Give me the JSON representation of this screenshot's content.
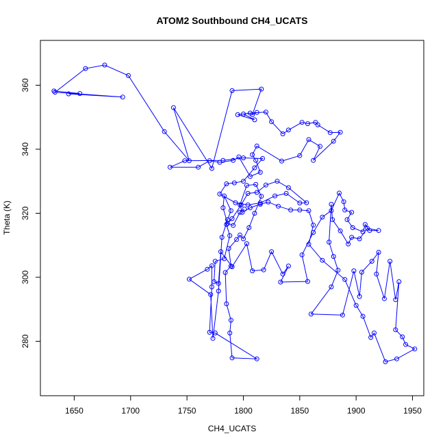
{
  "chart_data": {
    "type": "line",
    "title": "ATOM2 Southbound CH4_UCATS",
    "xlabel": "CH4_UCATS",
    "ylabel": "Theta (K)",
    "xlim": [
      1620,
      1960
    ],
    "ylim": [
      263,
      374
    ],
    "xticks": [
      1650,
      1700,
      1750,
      1800,
      1850,
      1900,
      1950
    ],
    "yticks": [
      280,
      300,
      320,
      340,
      360
    ],
    "grid": false,
    "legend": "none",
    "series": [
      {
        "color": "#0000ff",
        "markers": "open-circle",
        "points": [
          [
            1632,
            358.2
          ],
          [
            1655,
            357.4
          ],
          [
            1645,
            357.3
          ],
          [
            1693,
            356.3
          ],
          [
            1633,
            357.8
          ],
          [
            1660,
            365.2
          ],
          [
            1677,
            366.3
          ],
          [
            1698,
            363.0
          ],
          [
            1730,
            345.5
          ],
          [
            1752,
            336.4
          ],
          [
            1738,
            353.0
          ],
          [
            1772,
            334.0
          ],
          [
            1790,
            358.3
          ],
          [
            1816,
            358.8
          ],
          [
            1808,
            350.8
          ],
          [
            1812,
            351.5
          ],
          [
            1800,
            351.0
          ],
          [
            1810,
            349.2
          ],
          [
            1795,
            350.8
          ],
          [
            1806,
            351.3
          ],
          [
            1820,
            351.6
          ],
          [
            1825,
            348.6
          ],
          [
            1835,
            344.8
          ],
          [
            1840,
            346.0
          ],
          [
            1852,
            348.4
          ],
          [
            1857,
            348.0
          ],
          [
            1864,
            348.4
          ],
          [
            1866,
            347.6
          ],
          [
            1877,
            345.2
          ],
          [
            1886,
            345.3
          ],
          [
            1880,
            342.5
          ],
          [
            1862,
            336.5
          ],
          [
            1868,
            340.9
          ],
          [
            1858,
            343.0
          ],
          [
            1850,
            338.0
          ],
          [
            1834,
            336.3
          ],
          [
            1812,
            341.0
          ],
          [
            1808,
            338.3
          ],
          [
            1811,
            336.5
          ],
          [
            1815,
            332.8
          ],
          [
            1806,
            331.5
          ],
          [
            1796,
            337.6
          ],
          [
            1791,
            336.5
          ],
          [
            1779,
            335.9
          ],
          [
            1770,
            336.4
          ],
          [
            1760,
            334.4
          ],
          [
            1735,
            334.4
          ],
          [
            1748,
            336.4
          ],
          [
            1782,
            336.5
          ],
          [
            1800,
            337.3
          ],
          [
            1817,
            337.1
          ],
          [
            1810,
            334.2
          ],
          [
            1800,
            330.0
          ],
          [
            1792,
            329.5
          ],
          [
            1785,
            329.2
          ],
          [
            1779,
            326.0
          ],
          [
            1793,
            323.3
          ],
          [
            1804,
            322.6
          ],
          [
            1815,
            323.2
          ],
          [
            1828,
            325.4
          ],
          [
            1838,
            326.2
          ],
          [
            1850,
            323.2
          ],
          [
            1856,
            323.3
          ],
          [
            1840,
            328.0
          ],
          [
            1830,
            330.0
          ],
          [
            1820,
            328.8
          ],
          [
            1812,
            326.5
          ],
          [
            1804,
            326.2
          ],
          [
            1798,
            322.6
          ],
          [
            1790,
            318.3
          ],
          [
            1785,
            316.5
          ],
          [
            1788,
            313.0
          ],
          [
            1783,
            305.8
          ],
          [
            1775,
            305.0
          ],
          [
            1774,
            298.6
          ],
          [
            1778,
            298.1
          ],
          [
            1780,
            308.0
          ],
          [
            1790,
            303.3
          ],
          [
            1803,
            310.5
          ],
          [
            1808,
            302.0
          ],
          [
            1818,
            302.3
          ],
          [
            1825,
            308.0
          ],
          [
            1835,
            301.0
          ],
          [
            1840,
            303.5
          ],
          [
            1833,
            298.5
          ],
          [
            1857,
            298.7
          ],
          [
            1852,
            307.0
          ],
          [
            1862,
            314.0
          ],
          [
            1870,
            318.8
          ],
          [
            1878,
            320.8
          ],
          [
            1885,
            326.3
          ],
          [
            1889,
            323.6
          ],
          [
            1890,
            321.0
          ],
          [
            1896,
            320.3
          ],
          [
            1892,
            318.0
          ],
          [
            1897,
            315.5
          ],
          [
            1906,
            314.2
          ],
          [
            1908,
            316.5
          ],
          [
            1912,
            314.6
          ],
          [
            1920,
            314.6
          ],
          [
            1910,
            315.3
          ],
          [
            1903,
            312.0
          ],
          [
            1896,
            312.5
          ],
          [
            1893,
            310.4
          ],
          [
            1886,
            314.5
          ],
          [
            1879,
            318.0
          ],
          [
            1878,
            322.8
          ],
          [
            1876,
            311.0
          ],
          [
            1880,
            306.5
          ],
          [
            1884,
            302.2
          ],
          [
            1878,
            297.0
          ],
          [
            1860,
            288.5
          ],
          [
            1888,
            288.2
          ],
          [
            1898,
            302.0
          ],
          [
            1903,
            294.0
          ],
          [
            1905,
            301.6
          ],
          [
            1914,
            305.0
          ],
          [
            1920,
            307.8
          ],
          [
            1918,
            301.0
          ],
          [
            1925,
            293.3
          ],
          [
            1930,
            305.0
          ],
          [
            1935,
            293.0
          ],
          [
            1938,
            298.6
          ],
          [
            1935,
            283.6
          ],
          [
            1941,
            281.4
          ],
          [
            1944,
            279.0
          ],
          [
            1952,
            277.6
          ],
          [
            1936,
            274.5
          ],
          [
            1926,
            273.6
          ],
          [
            1916,
            282.6
          ],
          [
            1913,
            281.2
          ],
          [
            1906,
            287.8
          ],
          [
            1900,
            291.2
          ],
          [
            1890,
            299.3
          ],
          [
            1870,
            305.3
          ],
          [
            1858,
            310.3
          ],
          [
            1862,
            316.3
          ],
          [
            1858,
            320.8
          ],
          [
            1850,
            321.0
          ],
          [
            1842,
            321.0
          ],
          [
            1831,
            322.2
          ],
          [
            1822,
            323.5
          ],
          [
            1815,
            322.8
          ],
          [
            1806,
            321.7
          ],
          [
            1799,
            320.3
          ],
          [
            1797,
            322.6
          ],
          [
            1803,
            328.7
          ],
          [
            1811,
            329.0
          ],
          [
            1816,
            325.3
          ],
          [
            1810,
            320.0
          ],
          [
            1805,
            315.5
          ],
          [
            1800,
            312.0
          ],
          [
            1797,
            313.2
          ],
          [
            1794,
            311.8
          ],
          [
            1787,
            309.0
          ],
          [
            1789,
            303.5
          ],
          [
            1784,
            301.5
          ],
          [
            1785,
            291.7
          ],
          [
            1789,
            286.6
          ],
          [
            1788,
            282.6
          ],
          [
            1790,
            274.8
          ],
          [
            1812,
            274.5
          ],
          [
            1775,
            282.6
          ],
          [
            1770,
            282.8
          ],
          [
            1772,
            297.0
          ],
          [
            1772,
            303.6
          ],
          [
            1768,
            302.5
          ],
          [
            1752,
            299.4
          ],
          [
            1771,
            294.6
          ],
          [
            1773,
            280.9
          ],
          [
            1778,
            295.7
          ],
          [
            1781,
            312.5
          ],
          [
            1786,
            318.0
          ],
          [
            1789,
            320.8
          ],
          [
            1783,
            325.4
          ],
          [
            1782,
            321.7
          ],
          [
            1786,
            316.8
          ],
          [
            1791,
            316.2
          ],
          [
            1797,
            320.3
          ],
          [
            1801,
            321.3
          ]
        ]
      }
    ]
  }
}
